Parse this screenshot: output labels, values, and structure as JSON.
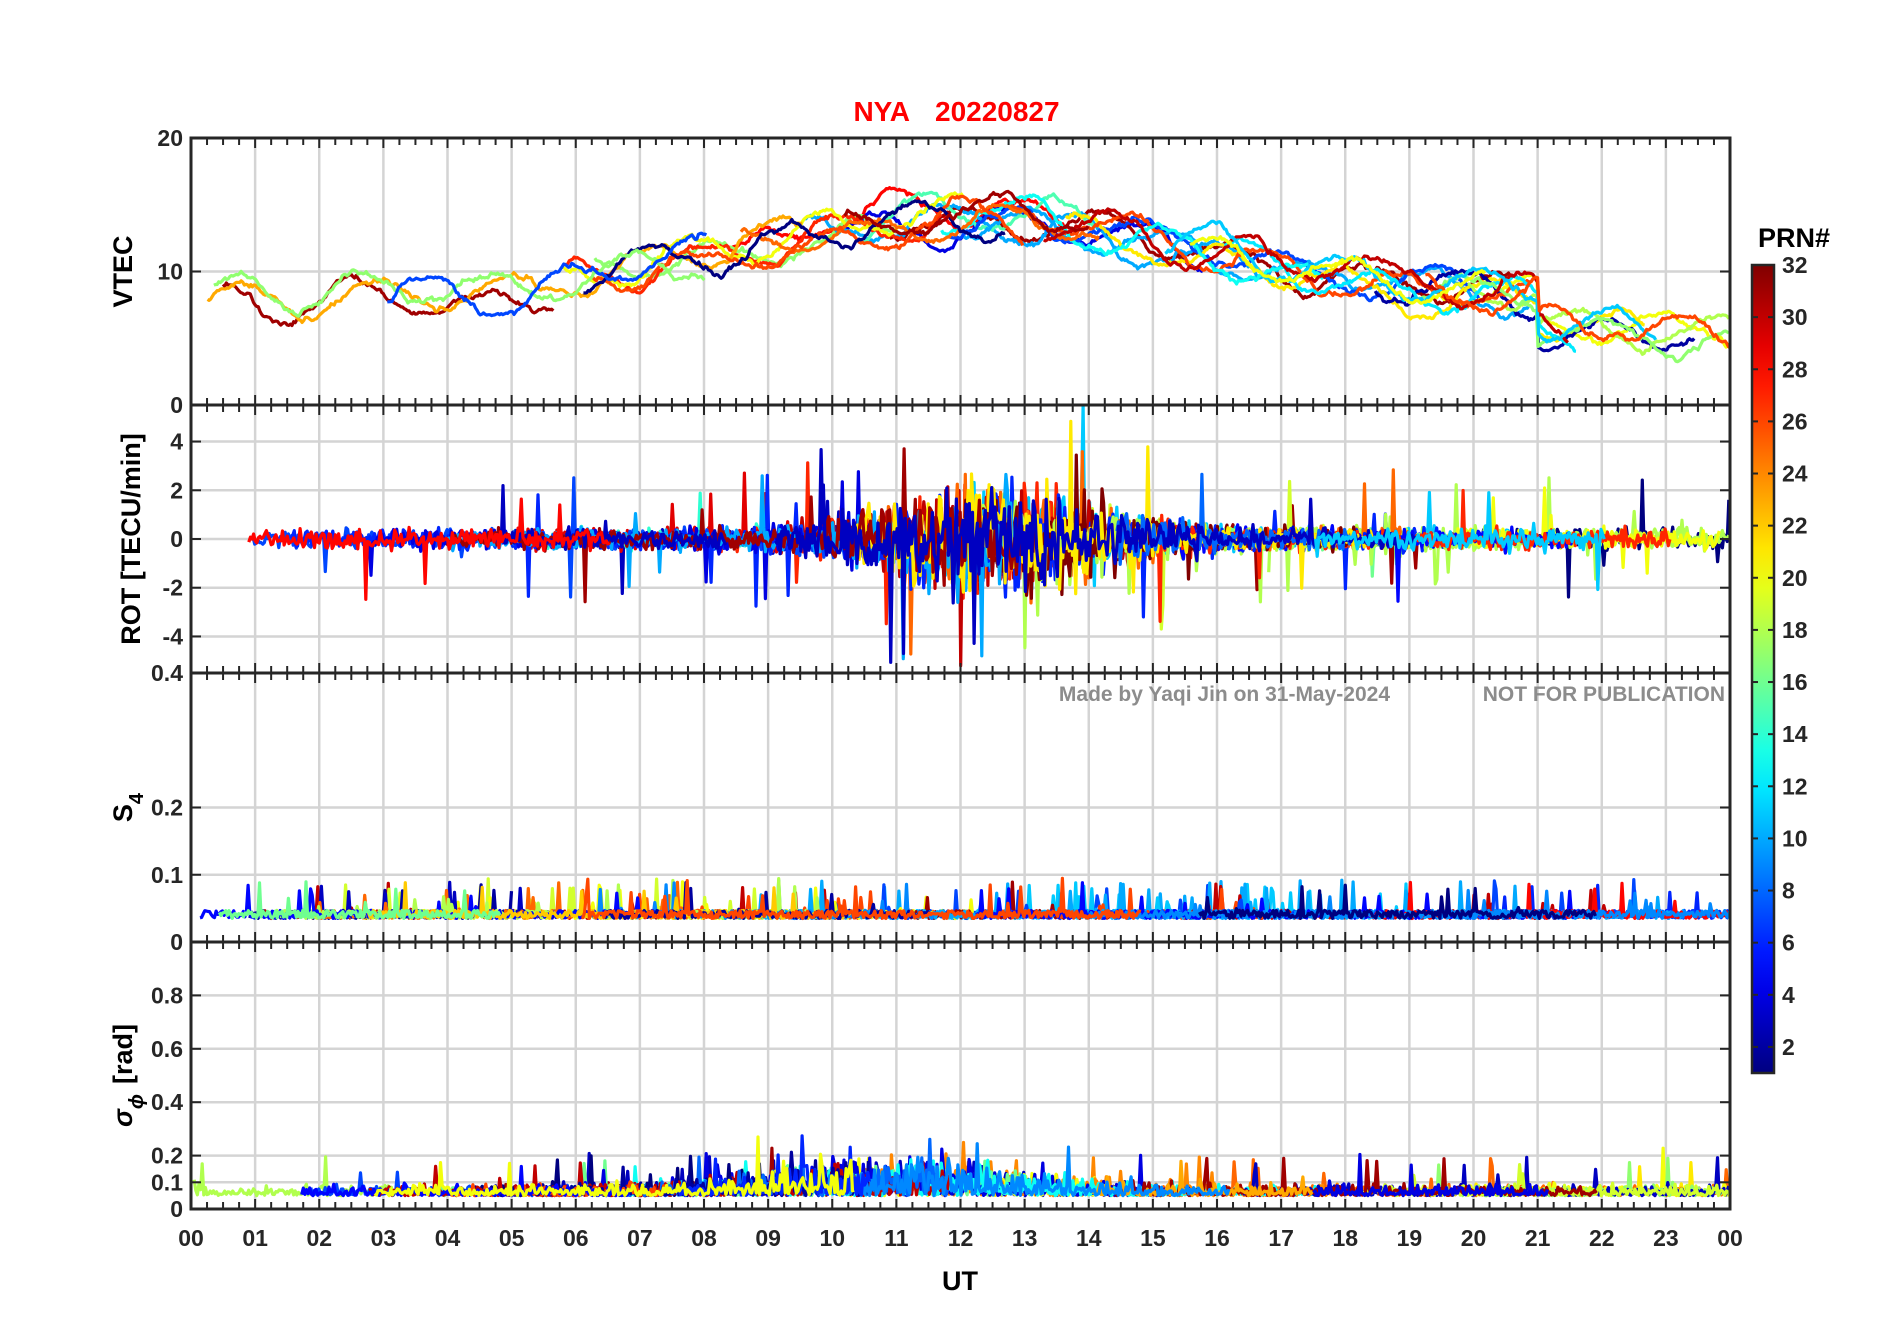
{
  "figure": {
    "title_station": "NYA",
    "title_date": "20220827",
    "title_color": "#ff0000",
    "watermark_author": "Made by Yaqi Jin on 31-May-2024",
    "watermark_notice": "NOT FOR PUBLICATION"
  },
  "chart_data": [
    {
      "type": "line",
      "ylabel": "VTEC",
      "xlim": [
        0,
        24
      ],
      "ylim": [
        0,
        20
      ],
      "yticks": [
        0,
        10,
        20
      ],
      "series_by_prn": true
    },
    {
      "type": "line",
      "ylabel": "ROT [TECU/min]",
      "xlim": [
        0,
        24
      ],
      "ylim": [
        -5.5,
        5.5
      ],
      "yticks": [
        -4,
        -2,
        0,
        2,
        4
      ],
      "series_by_prn": true
    },
    {
      "type": "line",
      "ylabel": "S",
      "ylabel_sub": "4",
      "xlim": [
        0,
        24
      ],
      "ylim": [
        0,
        0.4
      ],
      "yticks": [
        0,
        0.1,
        0.2,
        0.4
      ],
      "series_by_prn": true
    },
    {
      "type": "line",
      "ylabel": "σ",
      "ylabel_sub": "ϕ",
      "ylabel_unit": "[rad]",
      "xlim": [
        0,
        24
      ],
      "ylim": [
        0,
        1
      ],
      "yticks": [
        0,
        0.1,
        0.2,
        0.4,
        0.6,
        0.8
      ],
      "series_by_prn": true
    }
  ],
  "x_axis": {
    "label": "UT",
    "ticks": [
      "00",
      "01",
      "02",
      "03",
      "04",
      "05",
      "06",
      "07",
      "08",
      "09",
      "10",
      "11",
      "12",
      "13",
      "14",
      "15",
      "16",
      "17",
      "18",
      "19",
      "20",
      "21",
      "22",
      "23",
      "00"
    ]
  },
  "colorbar": {
    "label": "PRN#",
    "range": [
      1,
      32
    ],
    "ticks": [
      2,
      4,
      6,
      8,
      10,
      12,
      14,
      16,
      18,
      20,
      22,
      24,
      26,
      28,
      30,
      32
    ],
    "colormap": "jet"
  }
}
